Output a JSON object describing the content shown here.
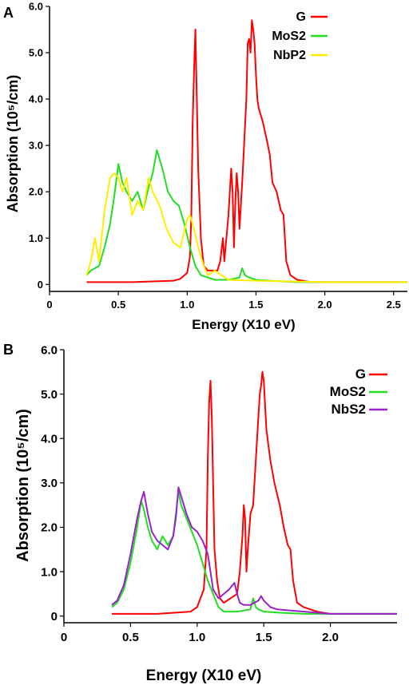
{
  "chart_data": [
    {
      "panel": "A",
      "type": "line",
      "xlabel": "Energy (X10 eV)",
      "ylabel": "Absorption (10⁵/cm)",
      "xlim": [
        0,
        2.6
      ],
      "ylim": [
        -0.15,
        6.0
      ],
      "xticks": [
        0,
        0.5,
        1.0,
        1.5,
        2.0,
        2.5
      ],
      "xtick_labels": [
        "0",
        "0.5",
        "1.0",
        "1.5",
        "2.0",
        "2.5"
      ],
      "yticks": [
        0,
        1.0,
        2.0,
        3.0,
        4.0,
        5.0,
        6.0
      ],
      "ytick_labels": [
        "0",
        "1.0",
        "2.0",
        "3.0",
        "4.0",
        "5.0",
        "6.0"
      ],
      "legend": "top-right",
      "series": [
        {
          "name": "G",
          "color": "#ff0000",
          "x": [
            0.27,
            0.6,
            0.9,
            0.95,
            1.0,
            1.02,
            1.03,
            1.04,
            1.05,
            1.06,
            1.07,
            1.08,
            1.1,
            1.12,
            1.15,
            1.2,
            1.22,
            1.24,
            1.26,
            1.27,
            1.3,
            1.32,
            1.33,
            1.34,
            1.35,
            1.36,
            1.37,
            1.38,
            1.4,
            1.42,
            1.43,
            1.44,
            1.45,
            1.46,
            1.47,
            1.48,
            1.49,
            1.5,
            1.51,
            1.52,
            1.55,
            1.58,
            1.6,
            1.62,
            1.65,
            1.68,
            1.7,
            1.72,
            1.75,
            1.8,
            1.9,
            2.0,
            2.1,
            2.3,
            2.6
          ],
          "y": [
            0.05,
            0.05,
            0.08,
            0.12,
            0.25,
            0.6,
            1.5,
            3.5,
            4.6,
            5.5,
            4.0,
            2.5,
            1.0,
            0.4,
            0.3,
            0.3,
            0.3,
            0.5,
            1.0,
            0.5,
            1.5,
            2.5,
            2.0,
            0.8,
            1.8,
            2.4,
            2.0,
            1.2,
            2.2,
            3.4,
            4.0,
            5.2,
            5.3,
            5.0,
            5.7,
            5.5,
            5.2,
            4.5,
            4.0,
            3.8,
            3.5,
            3.1,
            2.8,
            2.2,
            2.0,
            1.6,
            1.5,
            0.5,
            0.2,
            0.1,
            0.05,
            0.05,
            0.05,
            0.05,
            0.05
          ]
        },
        {
          "name": "MoS₂",
          "color": "#22dd22",
          "x": [
            0.27,
            0.3,
            0.33,
            0.36,
            0.4,
            0.44,
            0.47,
            0.5,
            0.53,
            0.56,
            0.6,
            0.64,
            0.68,
            0.72,
            0.75,
            0.78,
            0.82,
            0.86,
            0.9,
            0.94,
            0.98,
            1.02,
            1.06,
            1.1,
            1.15,
            1.2,
            1.3,
            1.38,
            1.4,
            1.42,
            1.45,
            1.5,
            1.6,
            1.8,
            2.0,
            2.3,
            2.6
          ],
          "y": [
            0.2,
            0.3,
            0.35,
            0.4,
            0.8,
            1.3,
            1.9,
            2.6,
            2.2,
            2.0,
            1.8,
            2.0,
            1.6,
            2.1,
            2.4,
            2.9,
            2.5,
            2.0,
            1.8,
            1.7,
            1.3,
            0.8,
            0.4,
            0.2,
            0.15,
            0.1,
            0.1,
            0.15,
            0.35,
            0.2,
            0.15,
            0.1,
            0.08,
            0.05,
            0.05,
            0.05,
            0.05
          ]
        },
        {
          "name": "NbP₂",
          "color": "#ffee00",
          "x": [
            0.27,
            0.3,
            0.33,
            0.36,
            0.4,
            0.44,
            0.47,
            0.5,
            0.53,
            0.56,
            0.6,
            0.64,
            0.68,
            0.72,
            0.75,
            0.8,
            0.85,
            0.9,
            0.95,
            1.0,
            1.02,
            1.05,
            1.08,
            1.12,
            1.15,
            1.2,
            1.3,
            1.5,
            2.0,
            2.6
          ],
          "y": [
            0.2,
            0.5,
            1.0,
            0.5,
            1.6,
            2.3,
            2.4,
            2.3,
            2.0,
            2.3,
            1.5,
            1.8,
            1.6,
            2.3,
            2.0,
            1.7,
            1.2,
            0.9,
            0.8,
            1.4,
            1.5,
            1.2,
            0.8,
            0.4,
            0.2,
            0.3,
            0.1,
            0.08,
            0.05,
            0.05
          ]
        }
      ]
    },
    {
      "panel": "B",
      "type": "line",
      "xlabel": "Energy (X10 eV)",
      "ylabel": "Absorption (10⁵/cm)",
      "xlim": [
        0,
        2.5
      ],
      "ylim": [
        -0.15,
        6.0
      ],
      "xticks": [
        0,
        0.5,
        1.0,
        1.5,
        2.0
      ],
      "xtick_labels": [
        "0",
        "0.5",
        "1.0",
        "1.5",
        "2.0"
      ],
      "yticks": [
        0,
        1.0,
        2.0,
        3.0,
        4.0,
        5.0,
        6.0
      ],
      "ytick_labels": [
        "0",
        "1.0",
        "2.0",
        "3.0",
        "4.0",
        "5.0",
        "6.0"
      ],
      "legend": "top-right",
      "series": [
        {
          "name": "G",
          "color": "#ff0000",
          "x": [
            0.36,
            0.7,
            0.95,
            1.0,
            1.05,
            1.07,
            1.08,
            1.09,
            1.1,
            1.11,
            1.12,
            1.13,
            1.15,
            1.17,
            1.2,
            1.25,
            1.3,
            1.32,
            1.34,
            1.35,
            1.36,
            1.37,
            1.38,
            1.4,
            1.42,
            1.44,
            1.46,
            1.47,
            1.48,
            1.49,
            1.5,
            1.52,
            1.55,
            1.58,
            1.62,
            1.65,
            1.68,
            1.7,
            1.72,
            1.75,
            1.8,
            1.9,
            2.0,
            2.2,
            2.5
          ],
          "y": [
            0.05,
            0.05,
            0.1,
            0.2,
            0.6,
            1.5,
            3.5,
            4.8,
            5.3,
            4.5,
            3.0,
            1.5,
            0.8,
            0.4,
            0.3,
            0.4,
            0.5,
            1.0,
            1.8,
            2.5,
            2.2,
            1.0,
            1.5,
            2.3,
            2.5,
            3.5,
            4.5,
            5.0,
            5.2,
            5.5,
            5.3,
            4.2,
            3.5,
            3.0,
            2.5,
            2.0,
            1.6,
            1.5,
            0.8,
            0.3,
            0.2,
            0.1,
            0.05,
            0.05,
            0.05
          ]
        },
        {
          "name": "MoS₂",
          "color": "#22dd22",
          "x": [
            0.36,
            0.4,
            0.45,
            0.5,
            0.55,
            0.58,
            0.6,
            0.63,
            0.66,
            0.7,
            0.74,
            0.78,
            0.82,
            0.84,
            0.86,
            0.88,
            0.92,
            0.96,
            1.0,
            1.04,
            1.08,
            1.12,
            1.16,
            1.2,
            1.3,
            1.4,
            1.42,
            1.44,
            1.46,
            1.5,
            1.6,
            1.8,
            2.0,
            2.5
          ],
          "y": [
            0.2,
            0.3,
            0.6,
            1.2,
            2.0,
            2.6,
            2.4,
            2.0,
            1.7,
            1.5,
            1.8,
            1.6,
            1.8,
            2.3,
            2.8,
            2.5,
            2.2,
            1.9,
            1.6,
            1.2,
            0.8,
            0.5,
            0.2,
            0.1,
            0.1,
            0.15,
            0.4,
            0.2,
            0.15,
            0.1,
            0.08,
            0.05,
            0.05,
            0.05
          ]
        },
        {
          "name": "NbS₂",
          "color": "#9922cc",
          "x": [
            0.36,
            0.4,
            0.45,
            0.5,
            0.55,
            0.58,
            0.6,
            0.63,
            0.66,
            0.7,
            0.74,
            0.78,
            0.82,
            0.84,
            0.86,
            0.88,
            0.92,
            0.96,
            1.0,
            1.04,
            1.08,
            1.12,
            1.16,
            1.2,
            1.24,
            1.28,
            1.3,
            1.32,
            1.35,
            1.4,
            1.46,
            1.48,
            1.5,
            1.55,
            1.6,
            1.8,
            2.0,
            2.5
          ],
          "y": [
            0.25,
            0.35,
            0.7,
            1.4,
            2.2,
            2.6,
            2.8,
            2.3,
            1.9,
            1.7,
            1.6,
            1.5,
            1.8,
            2.2,
            2.9,
            2.7,
            2.3,
            2.0,
            1.9,
            1.7,
            1.4,
            0.6,
            0.4,
            0.5,
            0.6,
            0.75,
            0.5,
            0.3,
            0.25,
            0.25,
            0.35,
            0.45,
            0.35,
            0.2,
            0.15,
            0.1,
            0.05,
            0.05
          ]
        }
      ]
    }
  ],
  "panels": [
    {
      "label": "A",
      "legend": [
        "G",
        "MoS2",
        "NbP2"
      ]
    },
    {
      "label": "B",
      "legend": [
        "G",
        "MoS2",
        "NbS2"
      ]
    }
  ]
}
